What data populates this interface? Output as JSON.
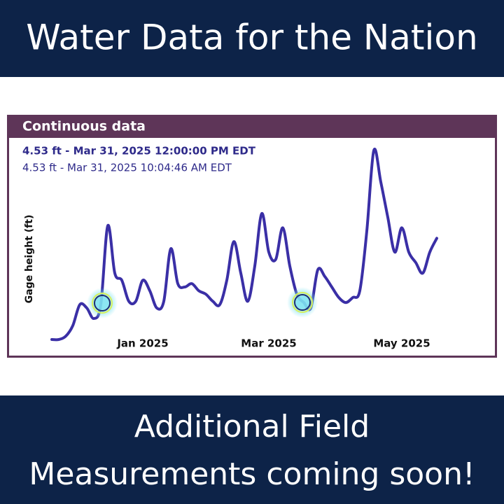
{
  "header": {
    "title": "Water Data for the Nation"
  },
  "chart_data": {
    "type": "line",
    "title": "Continuous data",
    "annotations": [
      "4.53 ft - Mar 31, 2025 12:00:00 PM EDT",
      "4.53 ft - Mar 31, 2025 10:04:46 AM EDT"
    ],
    "ylabel": "Gage height (ft)",
    "categories": [
      null,
      null,
      null,
      null,
      null,
      null,
      null,
      null,
      null,
      null,
      null,
      null,
      null,
      "Jan 2025",
      null,
      null,
      null,
      null,
      null,
      null,
      null,
      null,
      null,
      null,
      null,
      null,
      null,
      null,
      null,
      null,
      null,
      "Mar 2025",
      null,
      null,
      null,
      null,
      null,
      null,
      null,
      null,
      null,
      null,
      null,
      null,
      null,
      null,
      null,
      null,
      null,
      null,
      "May 2025",
      null,
      null,
      null,
      null,
      null
    ],
    "values": [
      3.65,
      3.65,
      3.73,
      3.98,
      4.48,
      4.4,
      4.15,
      4.48,
      6.36,
      5.23,
      5.06,
      4.56,
      4.56,
      5.06,
      4.81,
      4.4,
      4.56,
      5.81,
      4.98,
      4.9,
      4.98,
      4.81,
      4.73,
      4.56,
      4.48,
      5.06,
      5.98,
      5.23,
      4.56,
      5.4,
      6.65,
      5.73,
      5.56,
      6.31,
      5.4,
      4.73,
      4.53,
      4.4,
      5.31,
      5.15,
      4.9,
      4.65,
      4.53,
      4.65,
      4.81,
      6.23,
      8.15,
      7.4,
      6.56,
      5.73,
      6.31,
      5.73,
      5.48,
      5.23,
      5.73,
      6.06
    ],
    "color": "#3a2fa6",
    "ylim": [
      3.5,
      8.3
    ]
  },
  "footer": {
    "lines": [
      "Additional Field",
      "Measurements coming soon!"
    ]
  }
}
